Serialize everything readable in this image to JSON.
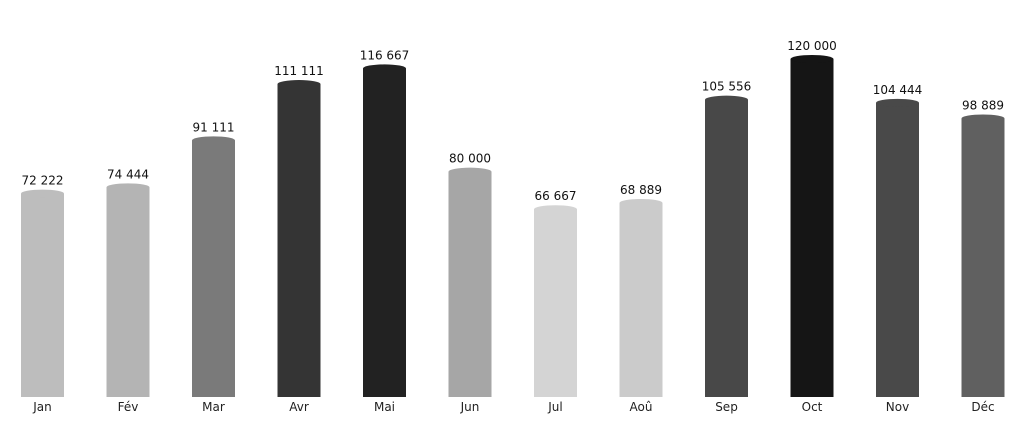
{
  "chart_data": {
    "type": "bar",
    "categories": [
      "Jan",
      "Fév",
      "Mar",
      "Avr",
      "Mai",
      "Jun",
      "Jul",
      "Aoû",
      "Sep",
      "Oct",
      "Nov",
      "Déc"
    ],
    "values": [
      72222,
      74444,
      91111,
      111111,
      116667,
      80000,
      66667,
      68889,
      105556,
      120000,
      104444,
      98889
    ],
    "value_labels": [
      "72 222",
      "74 444",
      "91 111",
      "111 111",
      "116 667",
      "80 000",
      "66 667",
      "68 889",
      "105 556",
      "120 000",
      "104 444",
      "98 889"
    ],
    "colors": [
      "#bdbdbd",
      "#b4b4b4",
      "#7a7a7a",
      "#343434",
      "#222222",
      "#a6a6a6",
      "#d4d4d4",
      "#cbcbcb",
      "#484848",
      "#151515",
      "#494949",
      "#606060"
    ],
    "ylim": [
      0,
      120000
    ],
    "grid": false,
    "legend": "none"
  }
}
